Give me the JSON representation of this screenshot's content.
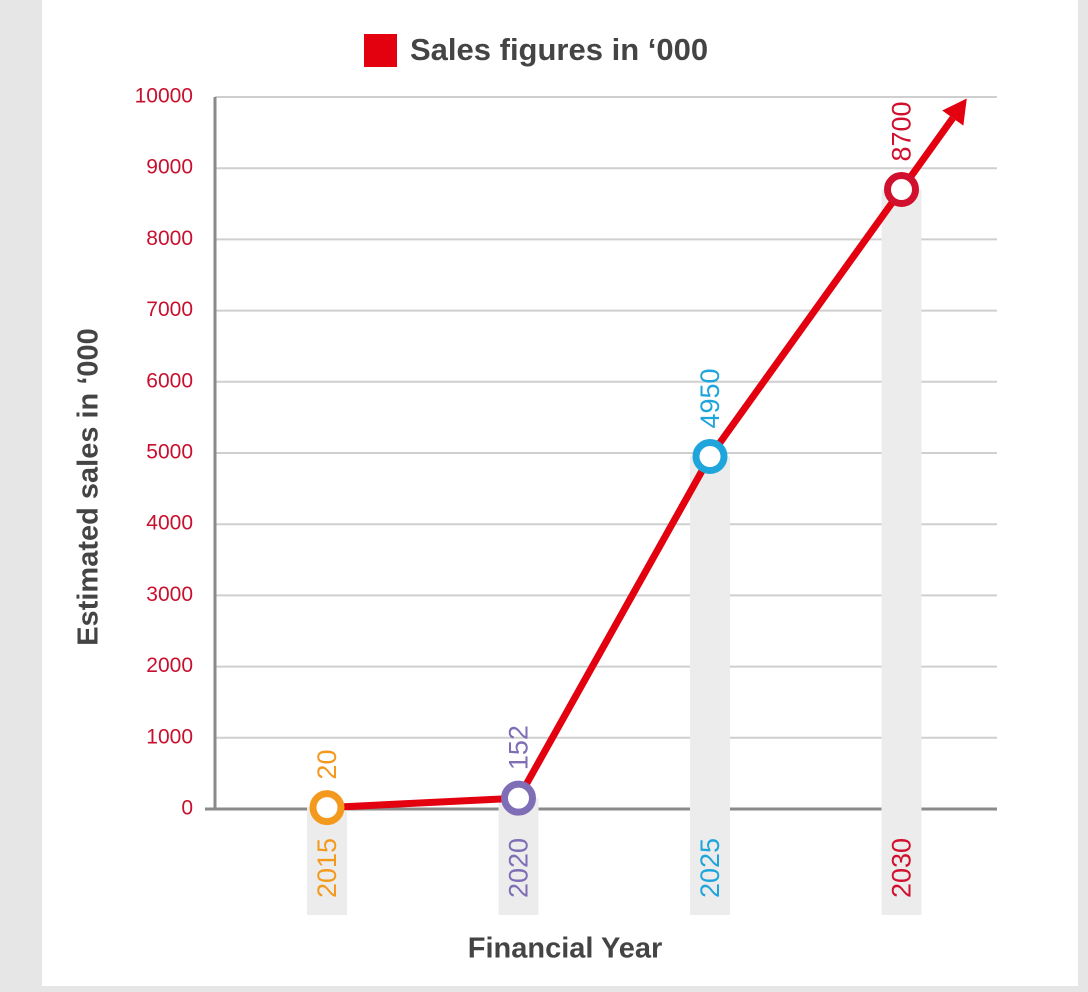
{
  "chart_data": {
    "type": "line",
    "legend": "Sales figures in ‘000",
    "y_label": "Estimated sales in ‘000",
    "x_label": "Financial Year",
    "categories": [
      "2015",
      "2020",
      "2025",
      "2030"
    ],
    "series": [
      {
        "name": "Sales figures in ‘000",
        "color": "#e3000f",
        "values": [
          20,
          152,
          4950,
          8700
        ]
      }
    ],
    "point_colors": [
      "#f39a1e",
      "#7f6db5",
      "#1fa5db",
      "#d0102c"
    ],
    "ylim": [
      0,
      10000
    ],
    "yticks": [
      0,
      1000,
      2000,
      3000,
      4000,
      5000,
      6000,
      7000,
      8000,
      9000,
      10000
    ],
    "ytick_color": "#c8102e",
    "grid": true
  }
}
